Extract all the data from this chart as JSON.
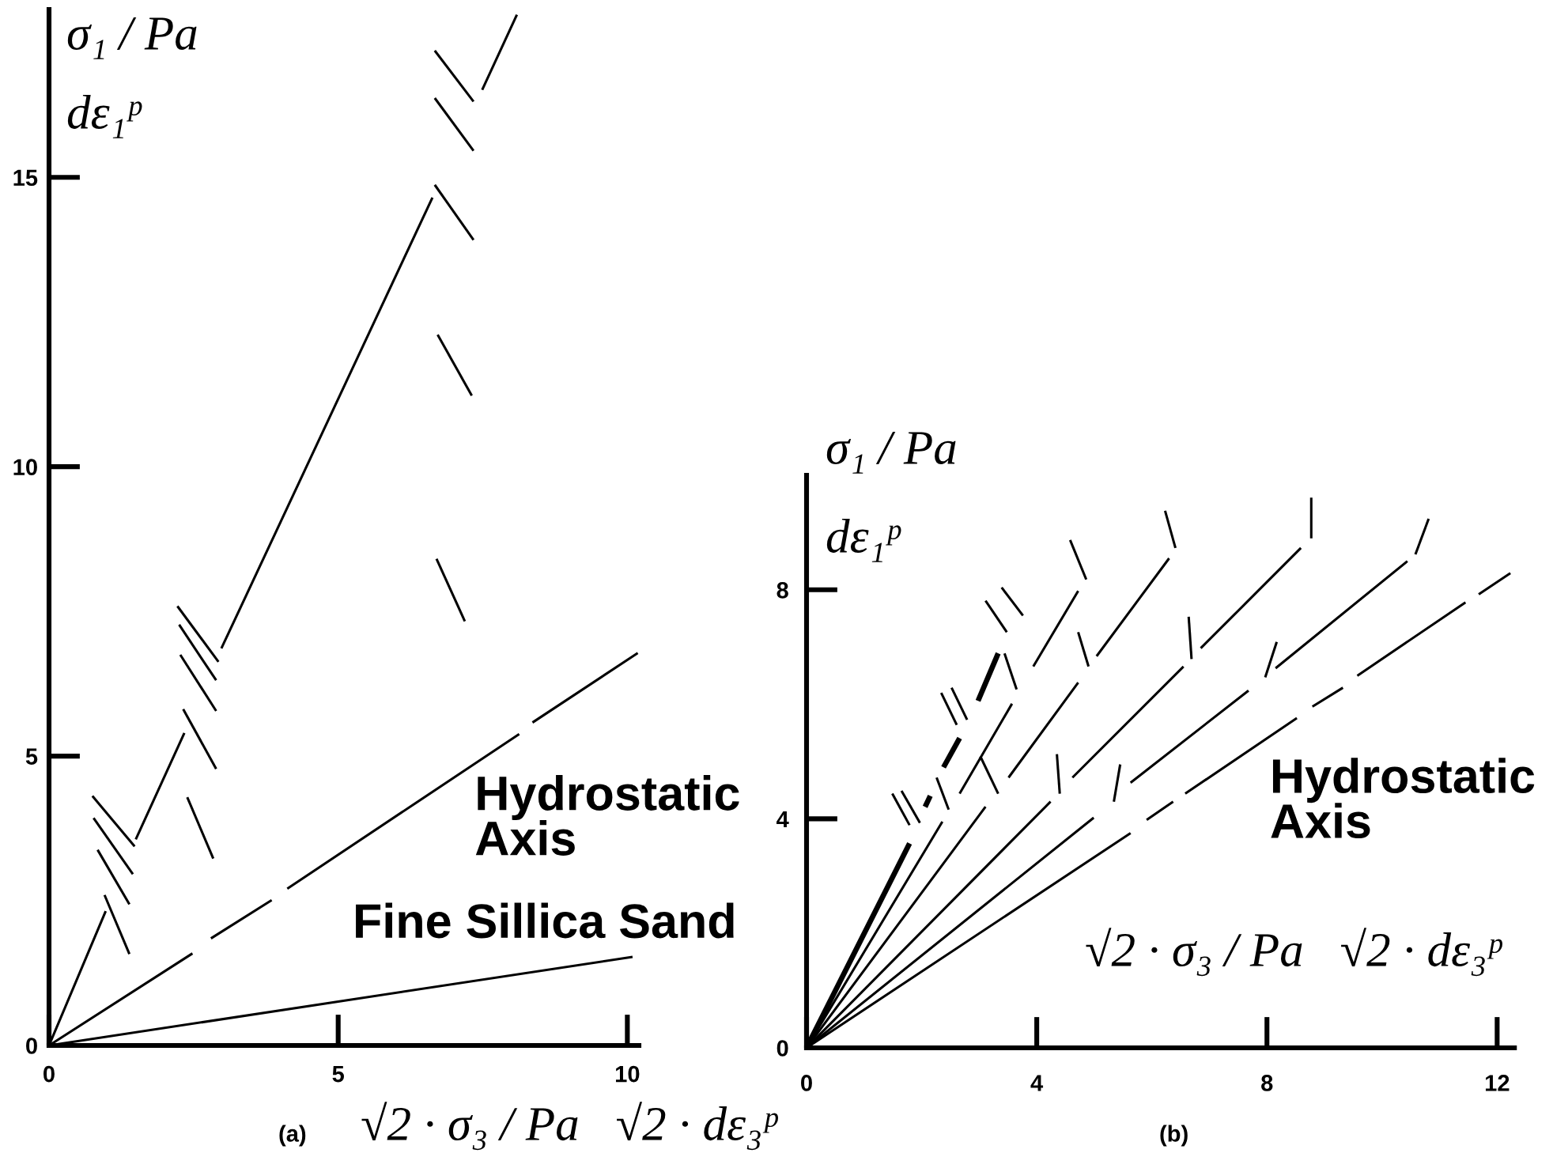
{
  "chart_data": [
    {
      "type": "line",
      "xlabel": "√2 · σ₃ / Pa   √2 · dε₃ᵖ",
      "ylabel": "σ₁ / Pa\ndε₁ᵖ",
      "xlim": [
        0,
        10.2
      ],
      "ylim": [
        0,
        17.9
      ],
      "xticks": [
        0,
        5,
        10
      ],
      "yticks": [
        0,
        5,
        10,
        15
      ],
      "annotations": [
        {
          "text": "Hydrostatic\nAxis",
          "x": 7.36,
          "y": 4.9
        },
        "Fine Sillica Sand",
        "(a)"
      ],
      "series": [
        {
          "color": "#000000",
          "x": [
            0,
            0.98,
            1.24,
            1.5,
            2.34,
            2.66,
            2.98,
            6.63,
            7.06,
            7.49,
            8.09
          ],
          "values": [
            0,
            2.32,
            null,
            3.56,
            5.4,
            null,
            6.86,
            14.65,
            null,
            16.51,
            17.81
          ]
        },
        {
          "color": "#000000",
          "x": [
            0,
            2.48,
            2.64,
            2.8,
            3.85,
            3.98,
            4.12,
            8.13,
            8.24,
            8.36,
            10.18
          ],
          "values": [
            0,
            1.59,
            null,
            1.85,
            2.51,
            null,
            2.71,
            5.38,
            null,
            5.58,
            6.78
          ]
        },
        {
          "color": "#000000",
          "x": [
            0,
            10.09
          ],
          "values": [
            0,
            1.53
          ]
        },
        {
          "color": "#000000",
          "x": [
            0.75,
            1.48
          ],
          "values": [
            4.31,
            3.44
          ]
        },
        {
          "color": "#000000",
          "x": [
            0.77,
            1.45
          ],
          "values": [
            3.93,
            2.96
          ]
        },
        {
          "color": "#000000",
          "x": [
            0.84,
            1.39
          ],
          "values": [
            3.38,
            2.44
          ]
        },
        {
          "color": "#000000",
          "x": [
            0.96,
            1.39
          ],
          "values": [
            2.6,
            1.58
          ]
        },
        {
          "color": "#000000",
          "x": [
            2.22,
            2.93
          ],
          "values": [
            7.59,
            6.63
          ]
        },
        {
          "color": "#000000",
          "x": [
            2.25,
            2.89
          ],
          "values": [
            7.27,
            6.31
          ]
        },
        {
          "color": "#000000",
          "x": [
            2.27,
            2.89
          ],
          "values": [
            6.75,
            5.78
          ]
        },
        {
          "color": "#000000",
          "x": [
            2.32,
            2.89
          ],
          "values": [
            5.81,
            4.78
          ]
        },
        {
          "color": "#000000",
          "x": [
            2.39,
            2.84
          ],
          "values": [
            4.29,
            3.23
          ]
        },
        {
          "color": "#000000",
          "x": [
            6.7,
            7.19
          ],
          "values": [
            8.41,
            7.33
          ]
        },
        {
          "color": "#000000",
          "x": [
            6.67,
            7.34
          ],
          "values": [
            17.19,
            16.31
          ]
        },
        {
          "color": "#000000",
          "x": [
            6.67,
            7.34
          ],
          "values": [
            16.37,
            15.46
          ]
        },
        {
          "color": "#000000",
          "x": [
            6.67,
            7.34
          ],
          "values": [
            14.87,
            13.92
          ]
        },
        {
          "color": "#000000",
          "x": [
            6.72,
            7.31
          ],
          "values": [
            12.28,
            11.23
          ]
        }
      ]
    },
    {
      "type": "line",
      "xlabel": "√2 · σ₃ / Pa   √2 · dε₃ᵖ",
      "ylabel": "σ₁ / Pa\ndε₁ᵖ",
      "xlim": [
        0,
        12.3
      ],
      "ylim": [
        0,
        10
      ],
      "xticks": [
        0,
        4,
        8,
        12
      ],
      "yticks": [
        0,
        4,
        8
      ],
      "annotations": [
        {
          "text": "Hydrostatic\nAxis",
          "x": 8.05,
          "y": 5.45
        },
        "(b)"
      ],
      "series": [
        {
          "color": "#000000",
          "x": [
            0,
            5.63,
            5.77,
            5.91,
            6.37,
            6.47,
            6.58,
            8.52,
            8.65,
            8.79,
            9.32,
            9.45,
            9.57,
            11.45,
            11.56,
            11.68,
            12.23
          ],
          "values": [
            0,
            3.75,
            null,
            3.98,
            4.3,
            null,
            4.44,
            5.76,
            null,
            5.96,
            6.29,
            null,
            6.5,
            7.78,
            null,
            7.92,
            8.29
          ]
        },
        {
          "color": "#000000",
          "x": [
            0,
            4.99,
            5.31,
            5.63,
            7.68,
            7.9,
            8.15,
            10.44
          ],
          "values": [
            0,
            4.02,
            null,
            4.63,
            6.24,
            null,
            6.63,
            8.5
          ]
        },
        {
          "color": "#000000",
          "x": [
            0,
            4.24,
            4.43,
            4.62,
            6.55,
            6.7,
            6.85,
            8.59
          ],
          "values": [
            0,
            4.3,
            null,
            4.72,
            6.66,
            null,
            6.98,
            8.73
          ]
        },
        {
          "color": "#000000",
          "x": [
            0,
            3.11,
            3.31,
            3.51,
            4.72,
            4.88,
            5.04,
            6.3
          ],
          "values": [
            0,
            4.21,
            null,
            4.72,
            6.38,
            null,
            6.84,
            8.55
          ]
        },
        {
          "color": "#000000",
          "x": [
            0,
            2.36,
            2.51,
            2.66,
            3.57,
            3.75,
            3.94,
            4.72
          ],
          "values": [
            0,
            3.95,
            null,
            4.44,
            6.01,
            null,
            6.66,
            7.98
          ]
        },
        {
          "color": "#000000",
          "x": [
            0,
            1.79,
            1.92,
            2.06,
            2.15,
            2.26,
            2.38,
            2.66,
            2.82,
            2.98,
            3.33
          ],
          "values": [
            0,
            3.57,
            null,
            4.21,
            4.4,
            null,
            4.9,
            5.41,
            null,
            6.06,
            6.89
          ]
        },
        {
          "color": "#000000",
          "x": [
            5.34,
            5.45
          ],
          "values": [
            4.3,
            4.95
          ]
        },
        {
          "color": "#000000",
          "x": [
            7.97,
            8.17
          ],
          "values": [
            6.47,
            7.09
          ]
        },
        {
          "color": "#000000",
          "x": [
            10.58,
            10.81
          ],
          "values": [
            8.62,
            9.24
          ]
        },
        {
          "color": "#000000",
          "x": [
            4.4,
            4.35
          ],
          "values": [
            4.44,
            5.13
          ]
        },
        {
          "color": "#000000",
          "x": [
            6.69,
            6.64
          ],
          "values": [
            6.79,
            7.53
          ]
        },
        {
          "color": "#000000",
          "x": [
            8.77,
            8.77
          ],
          "values": [
            8.9,
            9.61
          ]
        },
        {
          "color": "#000000",
          "x": [
            3.33,
            3.02
          ],
          "values": [
            4.44,
            5.09
          ]
        },
        {
          "color": "#000000",
          "x": [
            4.9,
            4.72
          ],
          "values": [
            6.66,
            7.26
          ]
        },
        {
          "color": "#000000",
          "x": [
            6.41,
            6.23
          ],
          "values": [
            8.73,
            9.38
          ]
        },
        {
          "color": "#000000",
          "x": [
            2.47,
            2.26
          ],
          "values": [
            4.16,
            4.72
          ]
        },
        {
          "color": "#000000",
          "x": [
            3.65,
            3.44
          ],
          "values": [
            6.26,
            6.89
          ]
        },
        {
          "color": "#000000",
          "x": [
            4.86,
            4.58
          ],
          "values": [
            8.18,
            8.87
          ]
        },
        {
          "color": "#000000",
          "x": [
            1.79,
            1.49
          ],
          "values": [
            3.89,
            4.44
          ]
        },
        {
          "color": "#000000",
          "x": [
            1.97,
            1.65
          ],
          "values": [
            3.93,
            4.49
          ]
        },
        {
          "color": "#000000",
          "x": [
            2.61,
            2.34
          ],
          "values": [
            5.64,
            6.2
          ]
        },
        {
          "color": "#000000",
          "x": [
            2.79,
            2.52
          ],
          "values": [
            5.73,
            6.29
          ]
        },
        {
          "color": "#000000",
          "x": [
            3.48,
            3.11
          ],
          "values": [
            7.26,
            7.81
          ]
        },
        {
          "color": "#000000",
          "x": [
            3.76,
            3.39
          ],
          "values": [
            7.55,
            8.04
          ]
        }
      ]
    }
  ]
}
